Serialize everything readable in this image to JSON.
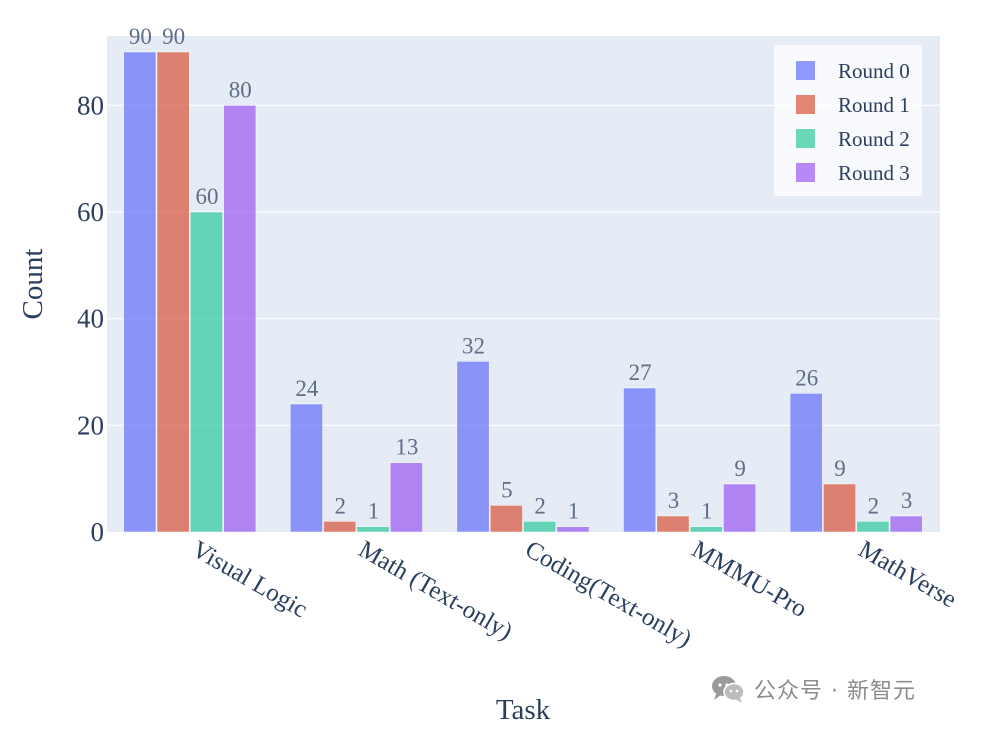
{
  "chart_data": {
    "type": "bar",
    "title": "",
    "xlabel": "Task",
    "ylabel": "Count",
    "categories": [
      "Visual Logic",
      "Math (Text-only)",
      "Coding(Text-only)",
      "MMMU-Pro",
      "MathVerse"
    ],
    "series": [
      {
        "name": "Round 0",
        "color": "#636efa",
        "values": [
          90,
          24,
          32,
          27,
          26
        ]
      },
      {
        "name": "Round 1",
        "color": "#d9533a",
        "values": [
          90,
          2,
          5,
          3,
          9
        ]
      },
      {
        "name": "Round 2",
        "color": "#2ec99a",
        "values": [
          60,
          1,
          2,
          1,
          2
        ]
      },
      {
        "name": "Round 3",
        "color": "#9a59f2",
        "values": [
          80,
          13,
          1,
          9,
          3
        ]
      }
    ],
    "ylim": [
      0,
      93
    ],
    "yticks": [
      0,
      20,
      40,
      60,
      80
    ],
    "grid": true,
    "legend_position": "top-right",
    "plot_bg": "#e5ecf6"
  },
  "watermark": {
    "text": "公众号 · 新智元",
    "icon": "wechat-icon"
  }
}
